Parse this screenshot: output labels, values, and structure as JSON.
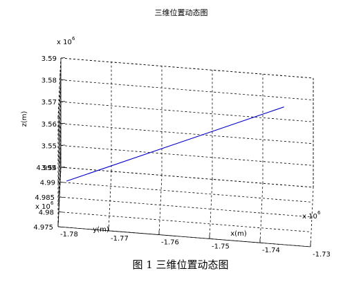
{
  "caption": "图 1  三维位置动态图",
  "chart_data": {
    "type": "line",
    "title": "三维位置动态图",
    "xlabel": "x(m)",
    "ylabel": "y(m)",
    "zlabel": "z(m)",
    "x_ticks": [
      "-1.78",
      "-1.77",
      "-1.76",
      "-1.75",
      "-1.74",
      "-1.73"
    ],
    "y_ticks": [
      "4.975",
      "4.98",
      "4.985",
      "4.99",
      "4.995"
    ],
    "z_ticks": [
      "3.54",
      "3.55",
      "3.56",
      "3.57",
      "3.58",
      "3.59"
    ],
    "x_multiplier": "x 10^6",
    "y_multiplier": "x 10^6",
    "z_multiplier": "x 10^6",
    "x_range": [
      -1.78,
      -1.73
    ],
    "y_range": [
      4.975,
      4.995
    ],
    "z_range": [
      3.54,
      3.59
    ],
    "grid": true,
    "line_color": "#0000cc",
    "series": [
      {
        "points": [
          {
            "x": -1.7786,
            "y": 4.9851,
            "z": 3.5474
          },
          {
            "x": -1.7357,
            "y": 4.9913,
            "z": 3.5808
          }
        ]
      }
    ]
  }
}
